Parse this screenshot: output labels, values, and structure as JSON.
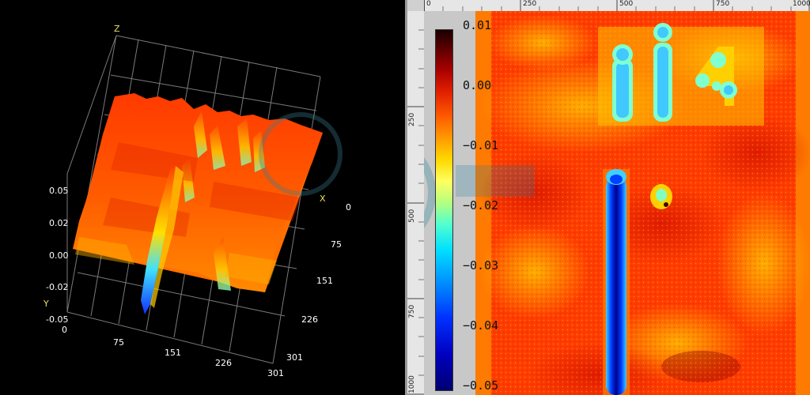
{
  "surface_view": {
    "axis_labels": {
      "z": "Z",
      "x": "X",
      "y": "Y"
    },
    "z_ticks": [
      "0.05",
      "0.02",
      "0.00",
      "-0.02",
      "-0.05"
    ],
    "y_ticks": [
      "0",
      "75",
      "151",
      "226",
      "301"
    ],
    "x_ticks": [
      "0",
      "75",
      "151",
      "226",
      "301"
    ]
  },
  "heatmap_view": {
    "ruler_top_ticks": [
      "0",
      "250",
      "500",
      "750",
      "1000"
    ],
    "ruler_side_ticks": [
      "250",
      "500",
      "750",
      "1000"
    ],
    "colorbar_labels": [
      "0.01",
      "0.00",
      "−0.01",
      "−0.02",
      "−0.03",
      "−0.04",
      "−0.05"
    ],
    "colors": {
      "background_orange": "#ff3c00",
      "low_blue": "#0020e0",
      "high_yellow": "#ffe000"
    }
  }
}
